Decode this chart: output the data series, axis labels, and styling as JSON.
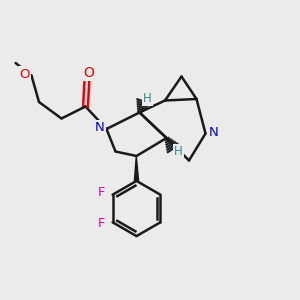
{
  "background_color": "#ebebeb",
  "bond_color": "#1a1a1a",
  "N_color": "#0000ee",
  "O_color": "#ee0000",
  "F_color": "#dd00aa",
  "H_color": "#2e8b8b",
  "figsize": [
    3.0,
    3.0
  ],
  "dpi": 100,
  "xlim": [
    0,
    10
  ],
  "ylim": [
    0,
    10
  ]
}
